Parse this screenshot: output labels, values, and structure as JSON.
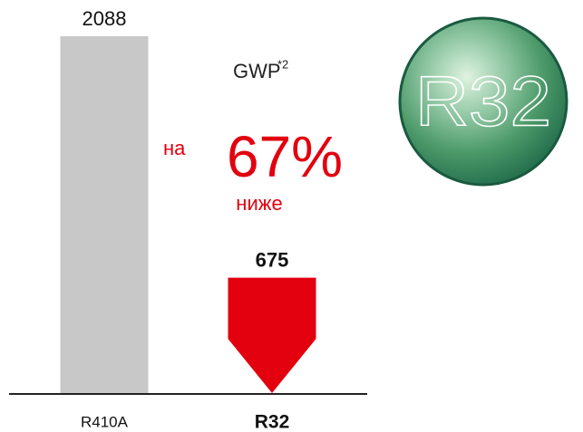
{
  "chart_data": {
    "type": "bar",
    "title": "GWP",
    "title_note": "*2",
    "categories": [
      "R410A",
      "R32"
    ],
    "values": [
      2088,
      675
    ],
    "colors": [
      "#c8c8c8",
      "#e3000f"
    ],
    "annotation": {
      "prefix": "на",
      "text": "67%",
      "suffix": "ниже"
    },
    "badge": "R32"
  }
}
